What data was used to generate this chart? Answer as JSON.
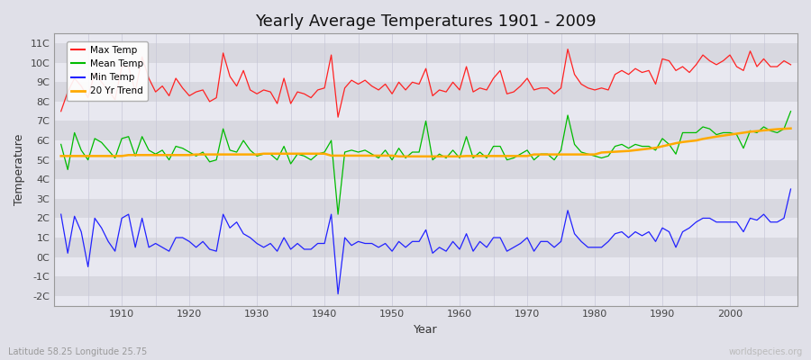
{
  "title": "Yearly Average Temperatures 1901 - 2009",
  "xlabel": "Year",
  "ylabel": "Temperature",
  "lat_lon_label": "Latitude 58.25 Longitude 25.75",
  "source_label": "worldspecies.org",
  "start_year": 1901,
  "end_year": 2009,
  "max_temp": [
    7.5,
    8.5,
    9.2,
    8.8,
    8.2,
    9.5,
    9.0,
    8.6,
    8.1,
    9.8,
    9.8,
    8.5,
    10.3,
    9.2,
    8.5,
    8.8,
    8.3,
    9.2,
    8.7,
    8.3,
    8.5,
    8.6,
    8.0,
    8.2,
    10.5,
    9.3,
    8.8,
    9.6,
    8.6,
    8.4,
    8.6,
    8.5,
    7.9,
    9.2,
    7.9,
    8.5,
    8.4,
    8.2,
    8.6,
    8.7,
    10.4,
    7.2,
    8.7,
    9.1,
    8.9,
    9.1,
    8.8,
    8.6,
    8.9,
    8.4,
    9.0,
    8.6,
    9.0,
    8.9,
    9.7,
    8.3,
    8.6,
    8.5,
    9.0,
    8.6,
    9.8,
    8.5,
    8.7,
    8.6,
    9.2,
    9.6,
    8.4,
    8.5,
    8.8,
    9.2,
    8.6,
    8.7,
    8.7,
    8.4,
    8.7,
    10.7,
    9.4,
    8.9,
    8.7,
    8.6,
    8.7,
    8.6,
    9.4,
    9.6,
    9.4,
    9.7,
    9.5,
    9.6,
    8.9,
    10.2,
    10.1,
    9.6,
    9.8,
    9.5,
    9.9,
    10.4,
    10.1,
    9.9,
    10.1,
    10.4,
    9.8,
    9.6,
    10.6,
    9.8,
    10.2,
    9.8,
    9.8,
    10.1,
    9.9
  ],
  "mean_temp": [
    5.8,
    4.5,
    6.4,
    5.5,
    5.0,
    6.1,
    5.9,
    5.5,
    5.1,
    6.1,
    6.2,
    5.2,
    6.2,
    5.5,
    5.3,
    5.5,
    5.0,
    5.7,
    5.6,
    5.4,
    5.2,
    5.4,
    4.9,
    5.0,
    6.6,
    5.5,
    5.4,
    6.0,
    5.5,
    5.2,
    5.3,
    5.3,
    5.0,
    5.7,
    4.8,
    5.3,
    5.2,
    5.0,
    5.3,
    5.4,
    6.0,
    2.2,
    5.4,
    5.5,
    5.4,
    5.5,
    5.3,
    5.1,
    5.5,
    5.0,
    5.6,
    5.1,
    5.4,
    5.4,
    7.0,
    5.0,
    5.3,
    5.1,
    5.5,
    5.1,
    6.2,
    5.1,
    5.4,
    5.1,
    5.7,
    5.7,
    5.0,
    5.1,
    5.3,
    5.5,
    5.0,
    5.3,
    5.3,
    5.0,
    5.5,
    7.3,
    5.8,
    5.4,
    5.3,
    5.2,
    5.1,
    5.2,
    5.7,
    5.8,
    5.6,
    5.8,
    5.7,
    5.7,
    5.5,
    6.1,
    5.8,
    5.3,
    6.4,
    6.4,
    6.4,
    6.7,
    6.6,
    6.3,
    6.4,
    6.4,
    6.3,
    5.6,
    6.5,
    6.4,
    6.7,
    6.5,
    6.4,
    6.6,
    7.5
  ],
  "min_temp": [
    2.2,
    0.2,
    2.1,
    1.3,
    -0.5,
    2.0,
    1.5,
    0.8,
    0.3,
    2.0,
    2.2,
    0.5,
    2.0,
    0.5,
    0.7,
    0.5,
    0.3,
    1.0,
    1.0,
    0.8,
    0.5,
    0.8,
    0.4,
    0.3,
    2.2,
    1.5,
    1.8,
    1.2,
    1.0,
    0.7,
    0.5,
    0.7,
    0.3,
    1.0,
    0.4,
    0.7,
    0.4,
    0.4,
    0.7,
    0.7,
    2.2,
    -1.9,
    1.0,
    0.6,
    0.8,
    0.7,
    0.7,
    0.5,
    0.7,
    0.3,
    0.8,
    0.5,
    0.8,
    0.8,
    1.4,
    0.2,
    0.5,
    0.3,
    0.8,
    0.4,
    1.2,
    0.3,
    0.8,
    0.5,
    1.0,
    1.0,
    0.3,
    0.5,
    0.7,
    1.0,
    0.3,
    0.8,
    0.8,
    0.5,
    0.8,
    2.4,
    1.2,
    0.8,
    0.5,
    0.5,
    0.5,
    0.8,
    1.2,
    1.3,
    1.0,
    1.3,
    1.1,
    1.3,
    0.8,
    1.5,
    1.3,
    0.5,
    1.3,
    1.5,
    1.8,
    2.0,
    2.0,
    1.8,
    1.8,
    1.8,
    1.8,
    1.3,
    2.0,
    1.9,
    2.2,
    1.8,
    1.8,
    2.0,
    3.5
  ],
  "trend_20yr": [
    5.2,
    5.2,
    5.2,
    5.2,
    5.2,
    5.2,
    5.2,
    5.2,
    5.2,
    5.2,
    5.25,
    5.25,
    5.25,
    5.25,
    5.25,
    5.25,
    5.25,
    5.25,
    5.25,
    5.25,
    5.28,
    5.28,
    5.28,
    5.28,
    5.28,
    5.28,
    5.28,
    5.28,
    5.28,
    5.28,
    5.32,
    5.32,
    5.32,
    5.32,
    5.32,
    5.32,
    5.32,
    5.32,
    5.32,
    5.32,
    5.22,
    5.22,
    5.22,
    5.22,
    5.22,
    5.22,
    5.22,
    5.22,
    5.22,
    5.22,
    5.18,
    5.18,
    5.18,
    5.18,
    5.18,
    5.18,
    5.18,
    5.18,
    5.18,
    5.18,
    5.2,
    5.2,
    5.2,
    5.2,
    5.2,
    5.2,
    5.2,
    5.2,
    5.2,
    5.2,
    5.28,
    5.28,
    5.28,
    5.28,
    5.28,
    5.28,
    5.28,
    5.28,
    5.28,
    5.28,
    5.38,
    5.4,
    5.42,
    5.44,
    5.46,
    5.5,
    5.54,
    5.58,
    5.62,
    5.7,
    5.78,
    5.86,
    5.92,
    5.96,
    6.0,
    6.08,
    6.14,
    6.2,
    6.25,
    6.3,
    6.35,
    6.4,
    6.45,
    6.48,
    6.52,
    6.55,
    6.58,
    6.6,
    6.62
  ],
  "colors": {
    "max": "#ff2222",
    "mean": "#00bb00",
    "min": "#2222ff",
    "trend": "#ffaa00",
    "background": "#e0e0e8",
    "band_light": "#e8e8f0",
    "band_dark": "#d8d8e0",
    "grid_v": "#c8c8d8"
  },
  "ylim": [
    -2.5,
    11.5
  ],
  "yticks": [
    -2,
    -1,
    0,
    1,
    2,
    3,
    4,
    5,
    6,
    7,
    8,
    9,
    10,
    11
  ],
  "ytick_labels": [
    "-2C",
    "-1C",
    "0C",
    "1C",
    "2C",
    "3C",
    "4C",
    "5C",
    "6C",
    "7C",
    "8C",
    "9C",
    "10C",
    "11C"
  ],
  "title_fontsize": 13,
  "axis_label_fontsize": 9,
  "tick_fontsize": 8
}
